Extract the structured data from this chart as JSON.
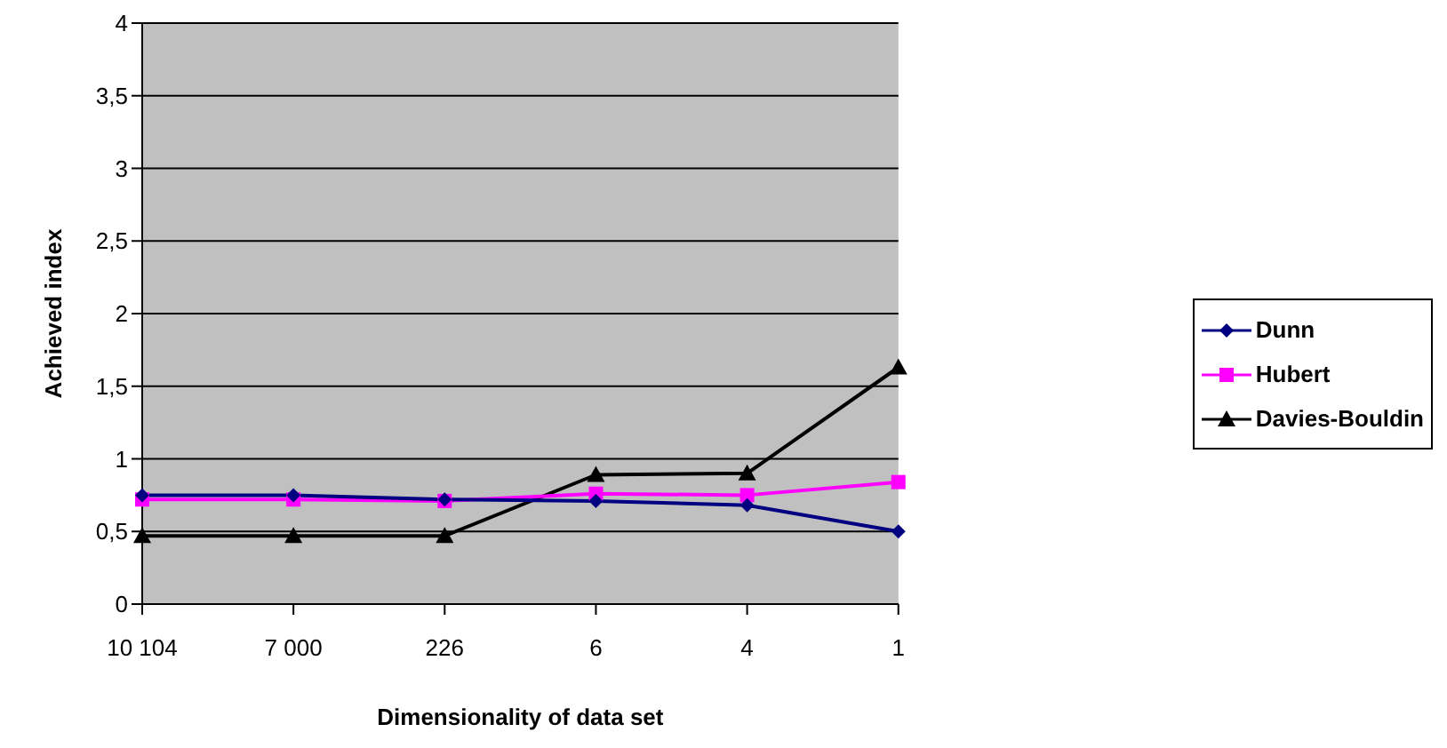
{
  "chart_data": {
    "type": "line",
    "xlabel": "Dimensionality of data set",
    "ylabel": "Achieved index",
    "categories": [
      "10 104",
      "7 000",
      "226",
      "6",
      "4",
      "1"
    ],
    "series": [
      {
        "name": "Dunn",
        "color": "#000080",
        "marker": "diamond",
        "values": [
          0.75,
          0.75,
          0.72,
          0.71,
          0.68,
          0.5
        ]
      },
      {
        "name": "Hubert",
        "color": "#ff00ff",
        "marker": "square",
        "values": [
          0.72,
          0.72,
          0.71,
          0.76,
          0.75,
          0.84
        ]
      },
      {
        "name": "Davies-Bouldin",
        "color": "#000000",
        "marker": "triangle",
        "values": [
          0.47,
          0.47,
          0.47,
          0.89,
          0.9,
          1.63
        ]
      }
    ],
    "ylim": [
      0,
      4
    ],
    "yticks": [
      0,
      {
        "value": 0.5,
        "label": "0,5"
      },
      1,
      {
        "value": 1.5,
        "label": "1,5"
      },
      2,
      {
        "value": 2.5,
        "label": "2,5"
      },
      3,
      {
        "value": 3.5,
        "label": "3,5"
      },
      4
    ],
    "grid": "y",
    "legend": "right",
    "line_style": "solid"
  }
}
